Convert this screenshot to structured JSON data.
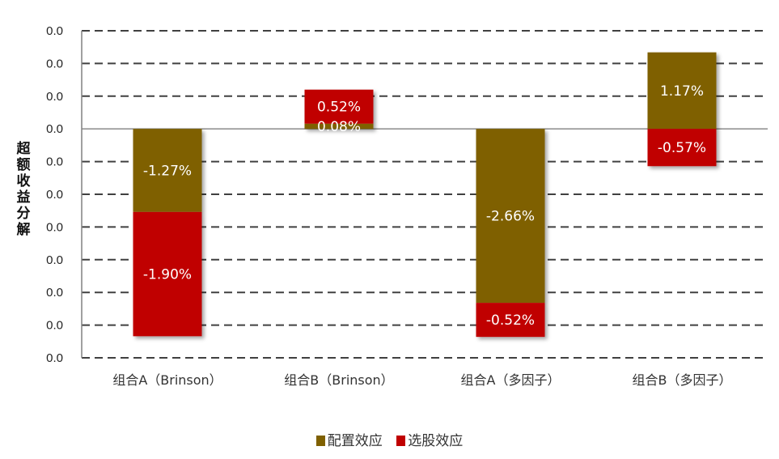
{
  "chart_data": {
    "type": "bar",
    "stacked": true,
    "title": "",
    "xlabel": "",
    "ylabel": "超额收益分解",
    "categories": [
      "组合A（Brinson）",
      "组合B（Brinson）",
      "组合A（多因子）",
      "组合B（多因子）"
    ],
    "series": [
      {
        "name": "配置效应",
        "color": "#7F6000",
        "values": [
          -1.27,
          0.08,
          -2.66,
          1.17
        ],
        "labels": [
          "-1.27%",
          "0.08%",
          "-2.66%",
          "1.17%"
        ]
      },
      {
        "name": "选股效应",
        "color": "#C00000",
        "values": [
          -1.9,
          0.52,
          -0.52,
          -0.57
        ],
        "labels": [
          "-1.90%",
          "0.52%",
          "-0.52%",
          "-0.57%"
        ]
      }
    ],
    "y_tick_labels": [
      "0.0",
      "0.0",
      "0.0",
      "0.0",
      "0.0",
      "0.0",
      "0.0",
      "0.0",
      "0.0",
      "0.0",
      "0.0"
    ],
    "ylim": [
      -0.035,
      0.015
    ],
    "grid": true,
    "grid_style": "dashed",
    "legend_position": "bottom"
  },
  "legend": {
    "items": [
      {
        "label": "配置效应",
        "color": "#7F6000"
      },
      {
        "label": "选股效应",
        "color": "#C00000"
      }
    ]
  }
}
